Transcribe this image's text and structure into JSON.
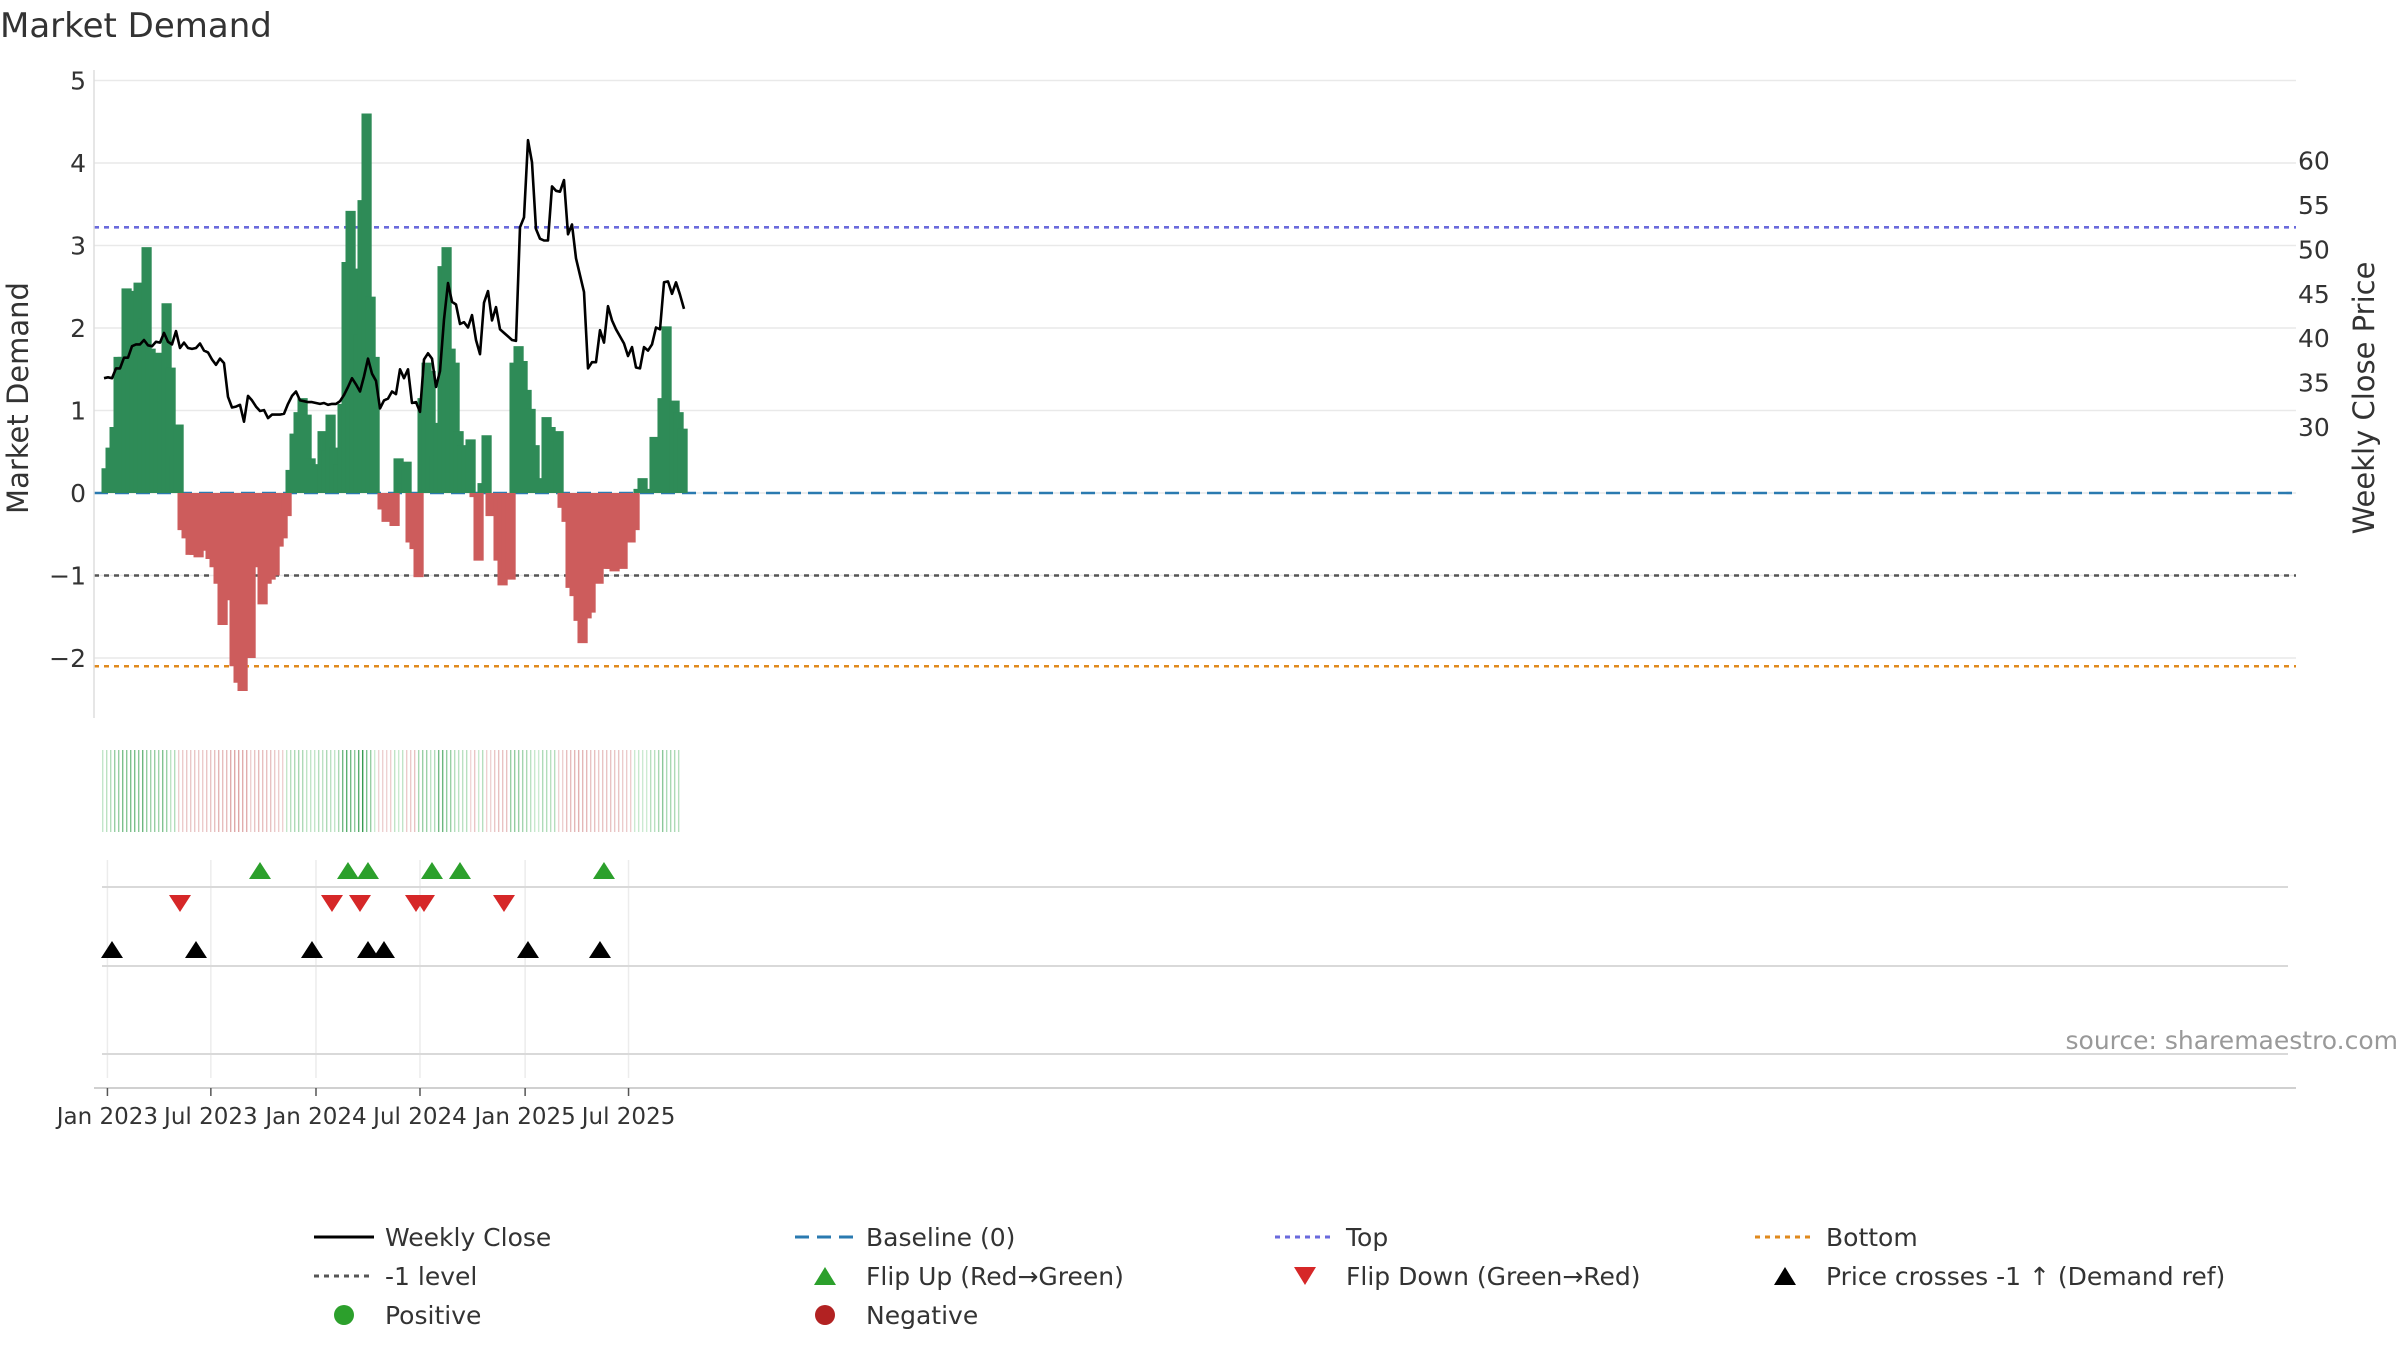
{
  "title": "Market Demand",
  "source": "source: sharemaestro.com",
  "chart_data": {
    "type": "bar",
    "title": "Market Demand",
    "xlabel": "",
    "ylabel": "Market Demand",
    "ylabel_right": "Weekly Close Price",
    "ylim": [
      -2.75,
      5
    ],
    "ylim_right": [
      28.5,
      66
    ],
    "y_ticks": [
      5,
      4,
      3,
      2,
      1,
      0,
      -1,
      -2
    ],
    "y_tick_labels": [
      "5",
      "4",
      "3",
      "2",
      "1",
      "0",
      "−1",
      "−2"
    ],
    "y2_ticks": [
      60,
      55,
      50,
      45,
      40,
      35,
      30
    ],
    "y2_tick_labels": [
      "60",
      "55",
      "50",
      "45",
      "40",
      "35",
      "30"
    ],
    "x_ticks": [
      "2023-01-01",
      "2023-07-01",
      "2024-01-01",
      "2024-07-01",
      "2025-01-01",
      "2025-07-01"
    ],
    "x_tick_labels": [
      "Jan 2023",
      "Jul 2023",
      "Jan 2024",
      "Jul 2024",
      "Jan 2025",
      "Jul 2025"
    ],
    "start_date": "2022-12-26",
    "x_end_date": "2025-09-22",
    "grid": true,
    "reference_lines": [
      {
        "name": "Baseline (0)",
        "value": 0,
        "color": "#2a7ab0",
        "style": "dashed"
      },
      {
        "name": "Top",
        "value": 3.22,
        "color": "#6a6adc",
        "style": "dotted"
      },
      {
        "name": "-1 level",
        "value": -1,
        "color": "#555555",
        "style": "dotted"
      },
      {
        "name": "Bottom",
        "value": -2.1,
        "color": "#e08a1e",
        "style": "dotted"
      }
    ],
    "colors": {
      "positive": "#2e8b57",
      "negative": "#cd5c5c",
      "price": "#000000",
      "flip_up": "#2ca02c",
      "flip_down": "#d62728",
      "cross": "#000000",
      "legend_positive": "#2ca02c",
      "legend_negative": "#b22222"
    },
    "series": [
      {
        "name": "Market Demand",
        "type": "bar",
        "values": [
          0.3,
          0.55,
          0.8,
          1.65,
          1.65,
          2.48,
          2.05,
          2.45,
          2.55,
          2.12,
          2.98,
          1.75,
          1.42,
          1.7,
          1.4,
          2.3,
          1.52,
          0.45,
          0.83,
          -0.45,
          -0.55,
          -0.75,
          -0.75,
          -0.78,
          -0.7,
          -0.55,
          -0.8,
          -0.9,
          -1.1,
          -1.6,
          -1.2,
          -1.3,
          -2.1,
          -2.3,
          -2.4,
          -2.0,
          -2.0,
          -0.3,
          -0.9,
          -1.35,
          -1.1,
          -1.05,
          -1.0,
          -0.65,
          -0.55,
          -0.28,
          0.28,
          0.72,
          0.98,
          1.15,
          0.95,
          0.42,
          0.35,
          0.32,
          0.75,
          0.52,
          0.95,
          0.55,
          0.35,
          1.08,
          2.8,
          3.42,
          2.72,
          1.92,
          3.55,
          4.6,
          2.38,
          1.65,
          0.0,
          -0.2,
          -0.35,
          -0.22,
          -0.4,
          0.42,
          0.12,
          0.38,
          -0.6,
          -0.68,
          -1.02,
          1.15,
          1.58,
          1.48,
          0.45,
          0.85,
          2.75,
          2.98,
          1.75,
          1.58,
          0.75,
          0.58,
          0.55,
          0.65,
          -0.05,
          -0.82,
          0.12,
          0.7,
          -0.28,
          -0.22,
          -0.82,
          -1.12,
          -0.98,
          -1.05,
          1.58,
          1.78,
          1.6,
          1.25,
          1.02,
          0.58,
          0.18,
          0.05,
          0.92,
          0.8,
          0.62,
          0.75,
          -0.18,
          -0.35,
          -1.15,
          -1.25,
          -1.55,
          -1.82,
          -1.52,
          -1.45,
          -0.92,
          -1.1,
          -0.72,
          -0.92,
          -0.92,
          -0.95,
          -0.82,
          -0.92,
          -0.55,
          -0.6,
          -0.45,
          0.05,
          0.18,
          0.05,
          0.0,
          0.68,
          0.65,
          1.15,
          2.02,
          1.0,
          1.12,
          0.98,
          0.78
        ]
      },
      {
        "name": "Weekly Close",
        "type": "line",
        "axis": "right",
        "values": [
          35.5,
          35.6,
          35.5,
          36.6,
          36.6,
          37.8,
          37.8,
          39.1,
          39.3,
          39.3,
          39.8,
          39.2,
          39.1,
          39.6,
          39.5,
          40.6,
          39.6,
          39.3,
          40.8,
          38.9,
          39.5,
          38.9,
          38.8,
          38.9,
          39.4,
          38.6,
          38.4,
          37.6,
          37.0,
          37.7,
          37.2,
          33.4,
          32.2,
          32.3,
          32.5,
          30.6,
          33.5,
          33.0,
          32.3,
          31.8,
          31.9,
          31.0,
          31.4,
          31.4,
          31.4,
          31.5,
          32.6,
          33.5,
          34.0,
          33.0,
          32.9,
          32.8,
          32.8,
          32.7,
          32.6,
          32.7,
          32.5,
          32.6,
          32.6,
          32.9,
          33.6,
          34.5,
          35.5,
          34.8,
          34.0,
          35.7,
          37.7,
          36.0,
          35.2,
          32.1,
          33.0,
          33.2,
          34.0,
          33.7,
          36.5,
          35.5,
          36.5,
          32.7,
          32.8,
          31.7,
          37.6,
          38.3,
          37.7,
          34.5,
          36.3,
          42.1,
          46.2,
          44.1,
          43.8,
          41.6,
          41.8,
          41.2,
          42.6,
          39.8,
          38.2,
          44.0,
          45.3,
          42.0,
          43.5,
          41.0,
          40.6,
          40.2,
          39.8,
          39.7,
          52.5,
          53.6,
          62.3,
          59.8,
          52.3,
          51.2,
          51.0,
          51.0,
          57.1,
          56.6,
          56.5,
          57.8,
          51.7,
          52.8,
          49.0,
          47.1,
          45.2,
          36.6,
          37.3,
          37.3,
          40.9,
          39.5,
          43.6,
          42.0,
          41.0,
          40.2,
          39.4,
          38.0,
          39.0,
          36.7,
          36.6,
          39.0,
          38.6,
          39.3,
          41.2,
          41.0,
          46.3,
          46.4,
          45.0,
          46.3,
          44.9,
          43.3
        ]
      }
    ],
    "flip_up_weeks": [
      39,
      61,
      66,
      82,
      89,
      125
    ],
    "flip_down_weeks": [
      19,
      57,
      64,
      78,
      80,
      100
    ],
    "price_cross_weeks": [
      2,
      23,
      52,
      66,
      70,
      106,
      124
    ],
    "legend": {
      "placement": "bottom",
      "items": [
        {
          "label": "Weekly Close",
          "marker": "line-solid",
          "color": "#000000"
        },
        {
          "label": "Baseline (0)",
          "marker": "line-dashed",
          "color": "#2a7ab0"
        },
        {
          "label": "Top",
          "marker": "line-dotted",
          "color": "#6a6adc"
        },
        {
          "label": "Bottom",
          "marker": "line-dotted",
          "color": "#e08a1e"
        },
        {
          "label": "-1 level",
          "marker": "line-dotted",
          "color": "#555555"
        },
        {
          "label": "Flip Up (Red→Green)",
          "marker": "triangle-up",
          "color": "#2ca02c"
        },
        {
          "label": "Flip Down (Green→Red)",
          "marker": "triangle-down",
          "color": "#d62728"
        },
        {
          "label": "Price crosses -1 ↑ (Demand ref)",
          "marker": "triangle-up",
          "color": "#000000"
        },
        {
          "label": "Positive",
          "marker": "circle",
          "color": "#2ca02c"
        },
        {
          "label": "Negative",
          "marker": "circle",
          "color": "#b22222"
        }
      ]
    }
  }
}
